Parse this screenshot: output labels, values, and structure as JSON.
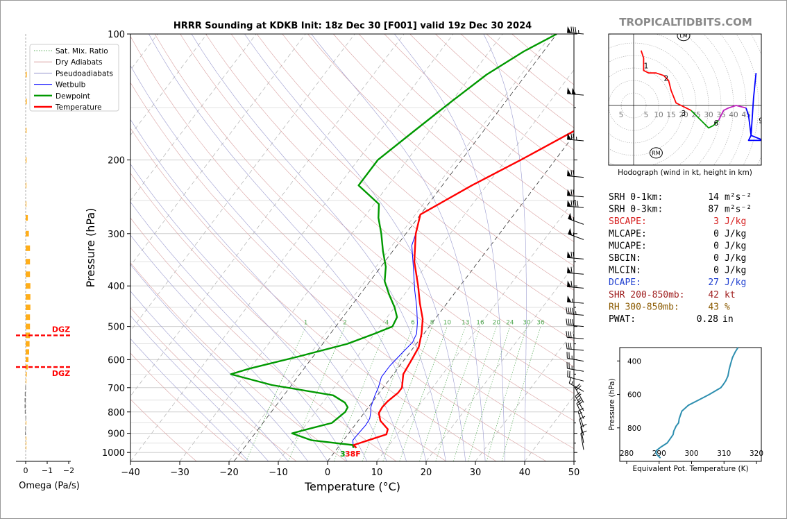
{
  "branding": {
    "site": "TROPICALTIDBITS.COM"
  },
  "colors": {
    "temperature": "#ff0000",
    "dewpoint": "#009900",
    "wetbulb": "#0000ff",
    "dry_adiabat": "#d9a0a0",
    "pseudoadiabat": "#9a9acf",
    "sat_mix": "#55aa55",
    "omega": "#ffae1a",
    "theta_e": "#2e8fb0",
    "srh": "#000000",
    "sbcape": "#d62020",
    "dcape": "#1f3fd0",
    "shr": "#a02020",
    "rh": "#8b5a00"
  },
  "chart_data": [
    {
      "id": "skewt",
      "type": "line",
      "title": "HRRR Sounding at KDKB Init: 18z Dec 30 [F001] valid 19z Dec 30 2024",
      "xlabel": "Temperature (°C)",
      "ylabel": "Pressure (hPa)",
      "xlim": [
        -40,
        50
      ],
      "ylim": [
        1050,
        100
      ],
      "y_scale": "log",
      "x_ticks": [
        -40,
        -30,
        -20,
        -10,
        0,
        10,
        20,
        30,
        40,
        50
      ],
      "y_ticks": [
        100,
        200,
        300,
        400,
        500,
        600,
        700,
        800,
        900,
        1000
      ],
      "legend": {
        "placement": "top-left",
        "entries": [
          "Sat. Mix. Ratio",
          "Dry Adiabats",
          "Pseudoadiabats",
          "Wetbulb",
          "Dewpoint",
          "Temperature"
        ]
      },
      "mixing_ratio_labels": [
        "1",
        "2",
        "4",
        "6",
        "8",
        "10",
        "13",
        "16",
        "20",
        "24",
        "30",
        "36"
      ],
      "surface_label": "38F",
      "surface_label_value": "3",
      "series": [
        {
          "name": "Temperature",
          "key": "temperature",
          "points": [
            [
              3.8,
              975
            ],
            [
              2.8,
              960
            ],
            [
              5.5,
              930
            ],
            [
              7.8,
              905
            ],
            [
              7.3,
              880
            ],
            [
              4.5,
              840
            ],
            [
              3.0,
              805
            ],
            [
              2.8,
              780
            ],
            [
              3.0,
              755
            ],
            [
              3.8,
              720
            ],
            [
              3.8,
              700
            ],
            [
              2.0,
              650
            ],
            [
              1.5,
              600
            ],
            [
              1.0,
              560
            ],
            [
              -0.5,
              520
            ],
            [
              -2.5,
              480
            ],
            [
              -5.5,
              440
            ],
            [
              -8.5,
              400
            ],
            [
              -13,
              350
            ],
            [
              -17,
              300
            ],
            [
              -19,
              270
            ],
            [
              -13,
              230
            ],
            [
              -7,
              200
            ],
            [
              -0.5,
              170
            ],
            [
              6,
              140
            ],
            [
              7,
              130
            ],
            [
              9.5,
              110
            ],
            [
              12,
              100
            ]
          ]
        },
        {
          "name": "Dewpoint",
          "key": "dewpoint",
          "points": [
            [
              3.2,
              975
            ],
            [
              2.6,
              960
            ],
            [
              -6.5,
              935
            ],
            [
              -11.5,
              900
            ],
            [
              -9,
              880
            ],
            [
              -5,
              850
            ],
            [
              -4,
              800
            ],
            [
              -4.2,
              780
            ],
            [
              -5.5,
              760
            ],
            [
              -9,
              730
            ],
            [
              -23,
              690
            ],
            [
              -33,
              650
            ],
            [
              -30,
              630
            ],
            [
              -22,
              590
            ],
            [
              -14,
              550
            ],
            [
              -10,
              520
            ],
            [
              -7.5,
              500
            ],
            [
              -8,
              475
            ],
            [
              -10,
              450
            ],
            [
              -13,
              420
            ],
            [
              -16,
              390
            ],
            [
              -18,
              360
            ],
            [
              -21,
              330
            ],
            [
              -24,
              300
            ],
            [
              -27,
              275
            ],
            [
              -29,
              255
            ],
            [
              -36,
              230
            ],
            [
              -36,
              200
            ],
            [
              -33,
              170
            ],
            [
              -30,
              145
            ],
            [
              -27,
              125
            ],
            [
              -23,
              110
            ],
            [
              -19,
              100
            ]
          ]
        },
        {
          "name": "Wetbulb",
          "key": "wetbulb",
          "points": [
            [
              3.3,
              975
            ],
            [
              2.7,
              960
            ],
            [
              1.9,
              935
            ],
            [
              2.0,
              900
            ],
            [
              2.2,
              860
            ],
            [
              2.0,
              830
            ],
            [
              1.2,
              800
            ],
            [
              0.5,
              780
            ],
            [
              0.0,
              755
            ],
            [
              -0.5,
              730
            ],
            [
              -1,
              700
            ],
            [
              -2,
              660
            ],
            [
              -2,
              620
            ],
            [
              -1.5,
              580
            ],
            [
              -1,
              545
            ],
            [
              -1.5,
              520
            ],
            [
              -3,
              490
            ],
            [
              -5.5,
              450
            ],
            [
              -8.5,
              410
            ],
            [
              -12,
              365
            ],
            [
              -16,
              320
            ],
            [
              -17,
              300
            ],
            [
              -19,
              270
            ],
            [
              -13,
              230
            ],
            [
              -7,
              200
            ],
            [
              -0.5,
              170
            ],
            [
              6.5,
              140
            ],
            [
              8,
              125
            ],
            [
              10,
              110
            ],
            [
              12.5,
              100
            ]
          ]
        }
      ]
    },
    {
      "id": "omega",
      "type": "bar",
      "xlabel": "Omega (Pa/s)",
      "x_ticks": [
        "0",
        "−1",
        "−2"
      ],
      "xlim": [
        0.3,
        -2.0
      ],
      "dgz_label": "DGZ",
      "dgz_pressures": [
        525,
        625
      ],
      "points": [
        [
          125,
          -0.05
        ],
        [
          145,
          -0.05
        ],
        [
          170,
          -0.04
        ],
        [
          200,
          -0.04
        ],
        [
          230,
          -0.03
        ],
        [
          255,
          -0.03
        ],
        [
          275,
          -0.1
        ],
        [
          300,
          -0.15
        ],
        [
          325,
          -0.2
        ],
        [
          350,
          -0.2
        ],
        [
          375,
          -0.2
        ],
        [
          400,
          -0.22
        ],
        [
          425,
          -0.22
        ],
        [
          450,
          -0.22
        ],
        [
          475,
          -0.2
        ],
        [
          500,
          -0.2
        ],
        [
          525,
          -0.2
        ],
        [
          550,
          -0.18
        ],
        [
          575,
          -0.16
        ],
        [
          600,
          -0.13
        ],
        [
          625,
          -0.1
        ],
        [
          650,
          -0.05
        ],
        [
          675,
          -0.02
        ],
        [
          700,
          0.02
        ],
        [
          725,
          0.04
        ],
        [
          750,
          0.05
        ],
        [
          775,
          0.05
        ],
        [
          800,
          0.04
        ],
        [
          825,
          0.01
        ],
        [
          850,
          -0.01
        ],
        [
          875,
          0.02
        ],
        [
          900,
          0.03
        ],
        [
          925,
          -0.01
        ],
        [
          950,
          -0.01
        ],
        [
          975,
          0.0
        ]
      ]
    },
    {
      "id": "hodograph",
      "type": "line",
      "caption": "Hodograph (wind in kt, height in km)",
      "ring_labels": [
        "5",
        "5",
        "10",
        "15",
        "20",
        "25",
        "30",
        "35",
        "40",
        "45"
      ],
      "height_labels": [
        "1",
        "2",
        "3",
        "6",
        "9"
      ],
      "storm_motion_labels": [
        "LM",
        "RM"
      ],
      "series": [
        {
          "name": "0-1 km",
          "color": "#ff0000",
          "points": [
            [
              3,
              22
            ],
            [
              4,
              19
            ],
            [
              4,
              14
            ],
            [
              6,
              13
            ],
            [
              9,
              13
            ],
            [
              12,
              12
            ]
          ]
        },
        {
          "name": "1-3 km",
          "color": "#ff0000",
          "points": [
            [
              12,
              12
            ],
            [
              14,
              10
            ],
            [
              15,
              6
            ],
            [
              17,
              1
            ],
            [
              19,
              0
            ],
            [
              21,
              -1
            ],
            [
              23,
              -2
            ]
          ]
        },
        {
          "name": "3-6 km",
          "color": "#009900",
          "points": [
            [
              23,
              -2
            ],
            [
              27,
              -6
            ],
            [
              30,
              -9
            ],
            [
              32,
              -8
            ],
            [
              34,
              -6
            ]
          ]
        },
        {
          "name": "6-9 km",
          "color": "#c020c0",
          "points": [
            [
              34,
              -6
            ],
            [
              35,
              -4
            ],
            [
              36,
              -2
            ],
            [
              38,
              -1
            ],
            [
              41,
              0
            ],
            [
              45,
              -1
            ]
          ]
        },
        {
          "name": "9+ km",
          "color": "#0000ff",
          "points": [
            [
              45,
              -1
            ],
            [
              46,
              -4
            ],
            [
              47,
              -12
            ],
            [
              52,
              -14
            ],
            [
              46,
              -14
            ],
            [
              47,
              -12
            ],
            [
              48,
              3
            ],
            [
              49,
              13
            ]
          ]
        }
      ],
      "height_label_positions": [
        [
          5,
          16
        ],
        [
          13,
          11
        ],
        [
          20,
          -3
        ],
        [
          33,
          -7
        ],
        [
          51,
          -6
        ]
      ],
      "lm": [
        20,
        28
      ],
      "rm": [
        9,
        -19
      ]
    },
    {
      "id": "theta_e",
      "type": "line",
      "ylabel": "Pressure (hPa)",
      "xlabel": "Equivalent Pot. Temperature (K)",
      "xlim": [
        280,
        320
      ],
      "ylim": [
        1000,
        320
      ],
      "x_ticks": [
        "280",
        "290",
        "300",
        "310",
        "320"
      ],
      "y_ticks": [
        "400",
        "600",
        "800"
      ],
      "points": [
        [
          290.4,
          980
        ],
        [
          289.6,
          965
        ],
        [
          289,
          950
        ],
        [
          289.2,
          935
        ],
        [
          290.5,
          915
        ],
        [
          292.5,
          890
        ],
        [
          293.6,
          860
        ],
        [
          294.3,
          840
        ],
        [
          294.5,
          820
        ],
        [
          295.2,
          790
        ],
        [
          296,
          770
        ],
        [
          296.2,
          745
        ],
        [
          297,
          700
        ],
        [
          299,
          665
        ],
        [
          302,
          635
        ],
        [
          305.5,
          600
        ],
        [
          309,
          560
        ],
        [
          309.8,
          540
        ],
        [
          310.5,
          520
        ],
        [
          311.2,
          490
        ],
        [
          311.6,
          450
        ],
        [
          312,
          420
        ],
        [
          312.6,
          380
        ],
        [
          313.5,
          345
        ],
        [
          314.3,
          320
        ]
      ]
    }
  ],
  "params": [
    {
      "key": "srh1",
      "label": "SRH 0-1km:",
      "value": "14",
      "unit": "m²s⁻²",
      "color": "#000000"
    },
    {
      "key": "srh3",
      "label": "SRH 0-3km:",
      "value": "87",
      "unit": "m²s⁻²",
      "color": "#000000"
    },
    {
      "key": "sbcape",
      "label": "SBCAPE:",
      "value": "3",
      "unit": "J/kg",
      "color": "#d62020"
    },
    {
      "key": "mlcape",
      "label": "MLCAPE:",
      "value": "0",
      "unit": "J/kg",
      "color": "#000000"
    },
    {
      "key": "mucape",
      "label": "MUCAPE:",
      "value": "0",
      "unit": "J/kg",
      "color": "#000000"
    },
    {
      "key": "sbcin",
      "label": "SBCIN:",
      "value": "0",
      "unit": "J/kg",
      "color": "#000000"
    },
    {
      "key": "mlcin",
      "label": "MLCIN:",
      "value": "0",
      "unit": "J/kg",
      "color": "#000000"
    },
    {
      "key": "dcape",
      "label": "DCAPE:",
      "value": "27",
      "unit": "J/kg",
      "color": "#1f3fd0"
    },
    {
      "key": "shr",
      "label": "SHR 200-850mb:",
      "value": "42",
      "unit": "kt",
      "color": "#a02020"
    },
    {
      "key": "rh",
      "label": "RH 300-850mb:",
      "value": "43",
      "unit": "%",
      "color": "#8b5a00"
    },
    {
      "key": "pwat",
      "label": "PWAT:",
      "value": "0.28",
      "unit": "in",
      "color": "#000000"
    }
  ],
  "barbs": [
    {
      "p": 100,
      "dir": 275,
      "spd": 85
    },
    {
      "p": 140,
      "dir": 275,
      "spd": 100
    },
    {
      "p": 180,
      "dir": 275,
      "spd": 75
    },
    {
      "p": 220,
      "dir": 275,
      "spd": 70
    },
    {
      "p": 245,
      "dir": 275,
      "spd": 70
    },
    {
      "p": 260,
      "dir": 275,
      "spd": 90
    },
    {
      "p": 285,
      "dir": 290,
      "spd": 55
    },
    {
      "p": 310,
      "dir": 290,
      "spd": 55
    },
    {
      "p": 345,
      "dir": 275,
      "spd": 70
    },
    {
      "p": 375,
      "dir": 275,
      "spd": 60
    },
    {
      "p": 405,
      "dir": 275,
      "spd": 60
    },
    {
      "p": 440,
      "dir": 275,
      "spd": 55
    },
    {
      "p": 470,
      "dir": 275,
      "spd": 45
    },
    {
      "p": 500,
      "dir": 275,
      "spd": 40
    },
    {
      "p": 535,
      "dir": 275,
      "spd": 35
    },
    {
      "p": 570,
      "dir": 275,
      "spd": 30
    },
    {
      "p": 605,
      "dir": 280,
      "spd": 25
    },
    {
      "p": 640,
      "dir": 280,
      "spd": 25
    },
    {
      "p": 675,
      "dir": 285,
      "spd": 20
    },
    {
      "p": 715,
      "dir": 300,
      "spd": 15
    },
    {
      "p": 760,
      "dir": 330,
      "spd": 20
    },
    {
      "p": 795,
      "dir": 330,
      "spd": 25
    },
    {
      "p": 830,
      "dir": 335,
      "spd": 20
    },
    {
      "p": 870,
      "dir": 340,
      "spd": 15
    },
    {
      "p": 910,
      "dir": 345,
      "spd": 10
    },
    {
      "p": 950,
      "dir": 350,
      "spd": 10
    },
    {
      "p": 985,
      "dir": 350,
      "spd": 10
    }
  ]
}
